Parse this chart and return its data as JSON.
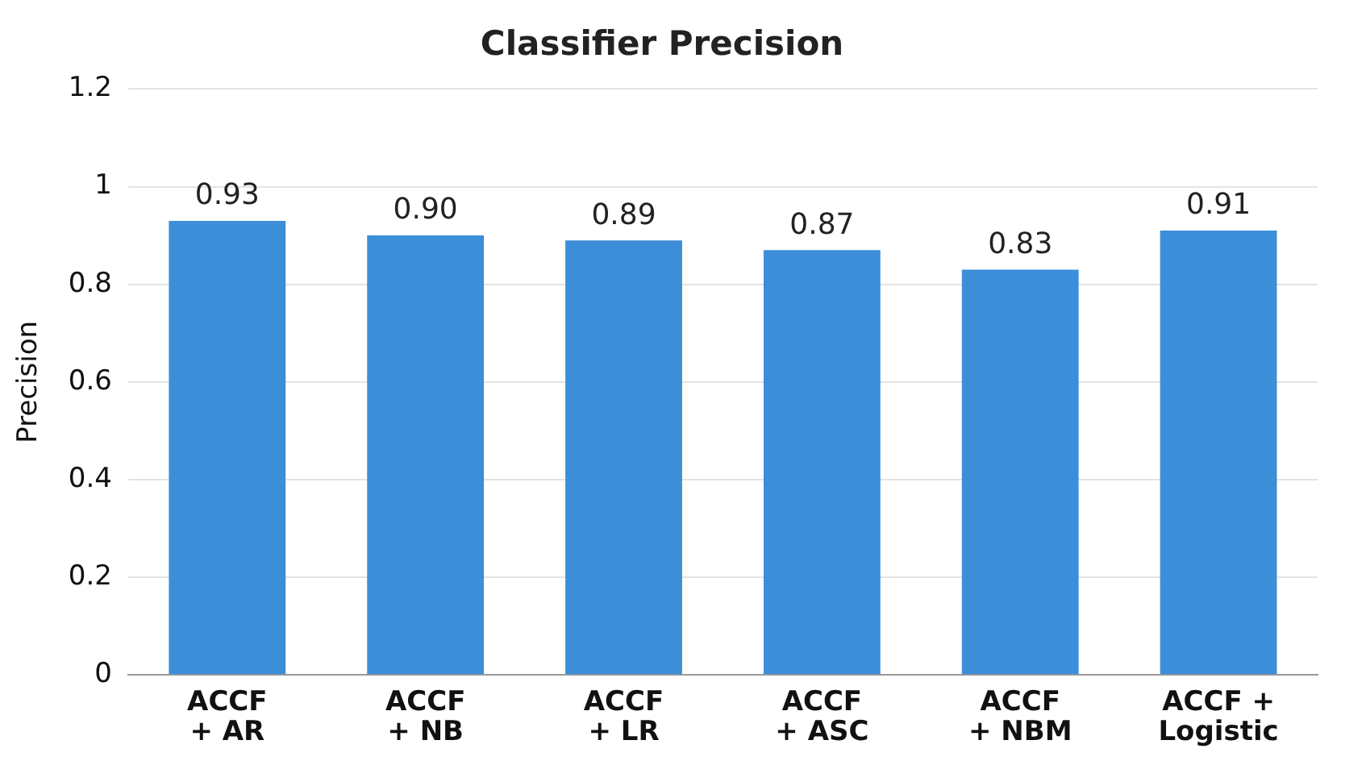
{
  "chart_data": {
    "type": "bar",
    "title": "Classifier Precision",
    "ylabel": "Precision",
    "categories": [
      "ACCF\n+ AR",
      "ACCF\n+ NB",
      "ACCF\n+ LR",
      "ACCF\n+ ASC",
      "ACCF\n+ NBM",
      "ACCF +\nLogistic"
    ],
    "values": [
      0.93,
      0.9,
      0.89,
      0.87,
      0.83,
      0.91
    ],
    "value_labels": [
      "0.93",
      "0.90",
      "0.89",
      "0.87",
      "0.83",
      "0.91"
    ],
    "color": "#3d8ed8",
    "ylim": [
      0,
      1.2
    ],
    "yticks": [
      0,
      0.2,
      0.4,
      0.6,
      0.8,
      1,
      1.2
    ],
    "grid": "y"
  }
}
